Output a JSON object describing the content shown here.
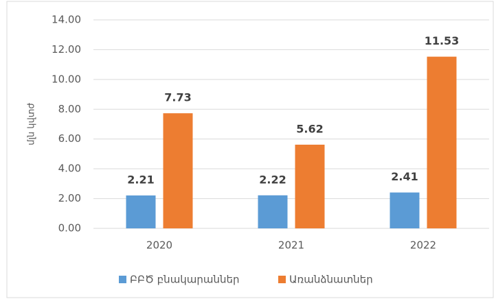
{
  "chart_data": {
    "type": "bar",
    "y_label": "մլն կվտժ",
    "categories": [
      "2020",
      "2021",
      "2022"
    ],
    "series": [
      {
        "name": "ԲԲԾ բնակարաններ",
        "color": "#5b9bd5",
        "values": [
          2.21,
          2.22,
          2.41
        ]
      },
      {
        "name": "Առանձնատներ",
        "color": "#ed7d31",
        "values": [
          7.73,
          5.62,
          11.53
        ]
      }
    ],
    "ylim": [
      0,
      14
    ],
    "yticks": [
      {
        "value": 0,
        "label": "0.00"
      },
      {
        "value": 2,
        "label": "2.00"
      },
      {
        "value": 4,
        "label": "4.00"
      },
      {
        "value": 6,
        "label": "6.00"
      },
      {
        "value": 8,
        "label": "8.00"
      },
      {
        "value": 10,
        "label": "10.00"
      },
      {
        "value": 12,
        "label": "12.00"
      },
      {
        "value": 14,
        "label": "14.00"
      }
    ],
    "grid": true,
    "legend": "bottom"
  }
}
